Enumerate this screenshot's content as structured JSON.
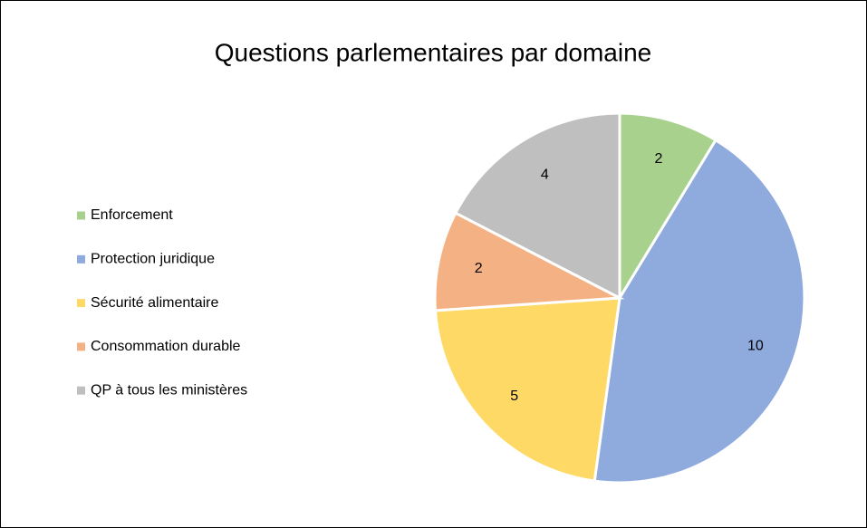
{
  "chart_data": {
    "type": "pie",
    "title": "Questions parlementaires par domaine",
    "categories": [
      "Enforcement",
      "Protection juridique",
      "Sécurité alimentaire",
      "Consommation durable",
      "QP à tous les ministères"
    ],
    "values": [
      2,
      10,
      5,
      2,
      4
    ],
    "colors": [
      "#a9d18e",
      "#8faadc",
      "#ffd966",
      "#f4b183",
      "#bfbfbf"
    ],
    "legend": "left"
  }
}
